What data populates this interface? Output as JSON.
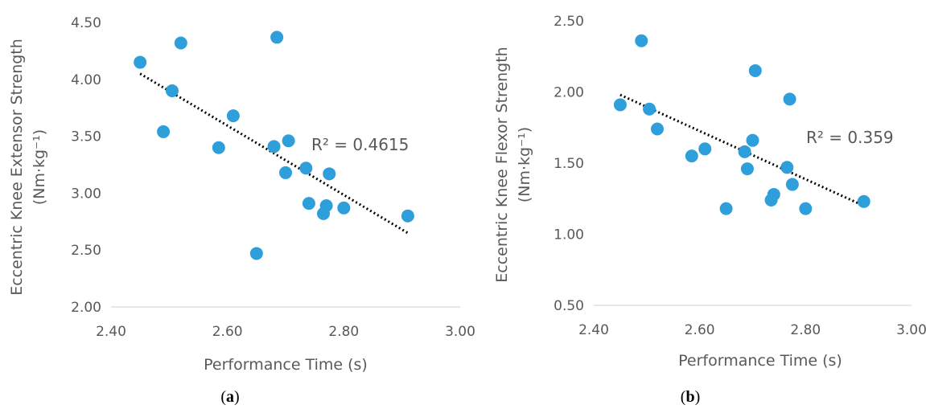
{
  "colors": {
    "marker": "#2e9fdb",
    "trend": "#000000",
    "axis_text": "#595959",
    "axis_line": "#d9d9d9"
  },
  "chart_data": [
    {
      "type": "scatter",
      "panel": "a",
      "panel_label_parts": [
        "(",
        "a",
        ")"
      ],
      "xlabel": "Performance Time (s)",
      "ylabel": "Eccentric Knee Extensor Strength",
      "ylabel_unit": "(Nm·kg⁻¹)",
      "xlim": [
        2.4,
        3.0
      ],
      "ylim": [
        2.0,
        4.5
      ],
      "x_ticks": [
        "2.40",
        "2.60",
        "2.80",
        "3.00"
      ],
      "y_ticks": [
        "2.00",
        "2.50",
        "3.00",
        "3.50",
        "4.00",
        "4.50"
      ],
      "grid": false,
      "annotation": "R² = 0.4615",
      "points": [
        {
          "x": 2.45,
          "y": 4.15
        },
        {
          "x": 2.49,
          "y": 3.54
        },
        {
          "x": 2.505,
          "y": 3.9
        },
        {
          "x": 2.52,
          "y": 4.32
        },
        {
          "x": 2.585,
          "y": 3.4
        },
        {
          "x": 2.61,
          "y": 3.68
        },
        {
          "x": 2.65,
          "y": 2.47
        },
        {
          "x": 2.68,
          "y": 3.41
        },
        {
          "x": 2.685,
          "y": 4.37
        },
        {
          "x": 2.7,
          "y": 3.18
        },
        {
          "x": 2.705,
          "y": 3.46
        },
        {
          "x": 2.735,
          "y": 3.22
        },
        {
          "x": 2.74,
          "y": 2.91
        },
        {
          "x": 2.765,
          "y": 2.82
        },
        {
          "x": 2.77,
          "y": 2.89
        },
        {
          "x": 2.775,
          "y": 3.17
        },
        {
          "x": 2.8,
          "y": 2.87
        },
        {
          "x": 2.91,
          "y": 2.8
        }
      ],
      "trendline": {
        "x": [
          2.45,
          2.91
        ],
        "y": [
          4.05,
          2.65
        ]
      }
    },
    {
      "type": "scatter",
      "panel": "b",
      "panel_label_parts": [
        "(",
        "b",
        ")"
      ],
      "xlabel": "Performance Time (s)",
      "ylabel": "Eccentric Knee Flexor Strength",
      "ylabel_unit": "(Nm·kg⁻¹)",
      "xlim": [
        2.4,
        3.0
      ],
      "ylim": [
        0.5,
        2.5
      ],
      "x_ticks": [
        "2.40",
        "2.60",
        "2.80",
        "3.00"
      ],
      "y_ticks": [
        "0.50",
        "1.00",
        "1.50",
        "2.00",
        "2.50"
      ],
      "grid": false,
      "annotation": "R² = 0.359",
      "points": [
        {
          "x": 2.45,
          "y": 1.91
        },
        {
          "x": 2.49,
          "y": 2.36
        },
        {
          "x": 2.505,
          "y": 1.88
        },
        {
          "x": 2.52,
          "y": 1.74
        },
        {
          "x": 2.585,
          "y": 1.55
        },
        {
          "x": 2.61,
          "y": 1.6
        },
        {
          "x": 2.65,
          "y": 1.18
        },
        {
          "x": 2.685,
          "y": 1.58
        },
        {
          "x": 2.69,
          "y": 1.46
        },
        {
          "x": 2.7,
          "y": 1.66
        },
        {
          "x": 2.705,
          "y": 2.15
        },
        {
          "x": 2.735,
          "y": 1.24
        },
        {
          "x": 2.74,
          "y": 1.28
        },
        {
          "x": 2.765,
          "y": 1.47
        },
        {
          "x": 2.77,
          "y": 1.95
        },
        {
          "x": 2.775,
          "y": 1.35
        },
        {
          "x": 2.8,
          "y": 1.18
        },
        {
          "x": 2.91,
          "y": 1.23
        }
      ],
      "trendline": {
        "x": [
          2.45,
          2.91
        ],
        "y": [
          1.98,
          1.2
        ]
      }
    }
  ]
}
